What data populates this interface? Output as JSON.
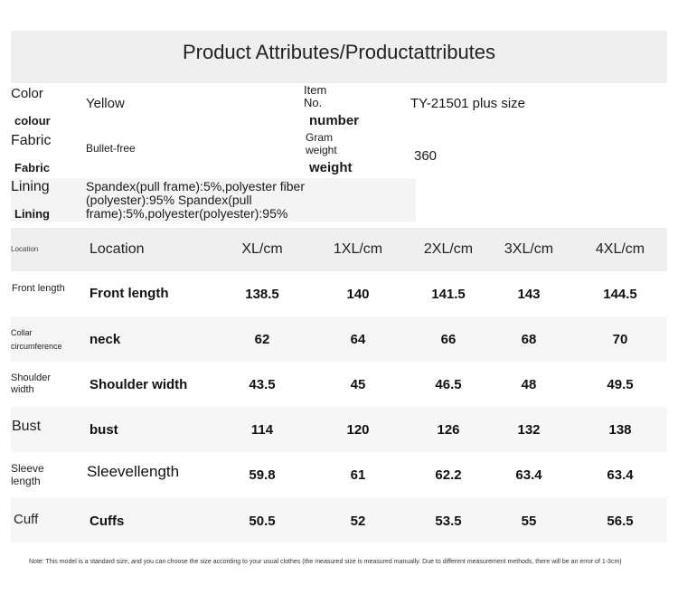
{
  "title": "Product Attributes/Productattributes",
  "attributes": {
    "color_label": "Color",
    "color_label_sub": "colour",
    "color_value": "Yellow",
    "item_label_1": "Item",
    "item_label_2": "No.",
    "item_label_sub": "number",
    "item_value": "TY-21501 plus size",
    "fabric_label": "Fabric",
    "fabric_label_sub": "Fabric",
    "fabric_value": "Bullet-free",
    "gram_label_1": "Gram",
    "gram_label_2": "weight",
    "gram_label_sub": "weight",
    "gram_value": "360",
    "lining_label": "Lining",
    "lining_label_sub": "Lining",
    "lining_value_1": "Spandex(pull frame):5%,polyester fiber",
    "lining_value_2": "(polyester):95% Spandex(pull",
    "lining_value_3": "frame):5%,polyester(polyester):95%"
  },
  "size_table": {
    "corner_label": "Location",
    "header_label": "Location",
    "columns": [
      "XL/cm",
      "1XL/cm",
      "2XL/cm",
      "3XL/cm",
      "4XL/cm"
    ],
    "rows": [
      {
        "left_1": "Front length",
        "left_2": "",
        "label": "Front length",
        "values": [
          "138.5",
          "140",
          "141.5",
          "143",
          "144.5"
        ]
      },
      {
        "left_1": "Collar",
        "left_2": "circumference",
        "label": "neck",
        "values": [
          "62",
          "64",
          "66",
          "68",
          "70"
        ]
      },
      {
        "left_1": "Shoulder",
        "left_2": "width",
        "label": "Shoulder width",
        "values": [
          "43.5",
          "45",
          "46.5",
          "48",
          "49.5"
        ]
      },
      {
        "left_1": "Bust",
        "left_2": "",
        "label": "bust",
        "values": [
          "114",
          "120",
          "126",
          "132",
          "138"
        ]
      },
      {
        "left_1": "Sleeve",
        "left_2": "length",
        "label": "Sleevellength",
        "values": [
          "59.8",
          "61",
          "62.2",
          "63.4",
          "63.4"
        ]
      },
      {
        "left_1": "Cuff",
        "left_2": "",
        "label": "Cuffs",
        "values": [
          "50.5",
          "52",
          "53.5",
          "55",
          "56.5"
        ]
      }
    ]
  },
  "note": "Note: This model is a standard size, and you can choose the size according to your usual clothes (the measured size is measured manually. Due to different measurement methods, there will be an error of 1-3cm)"
}
